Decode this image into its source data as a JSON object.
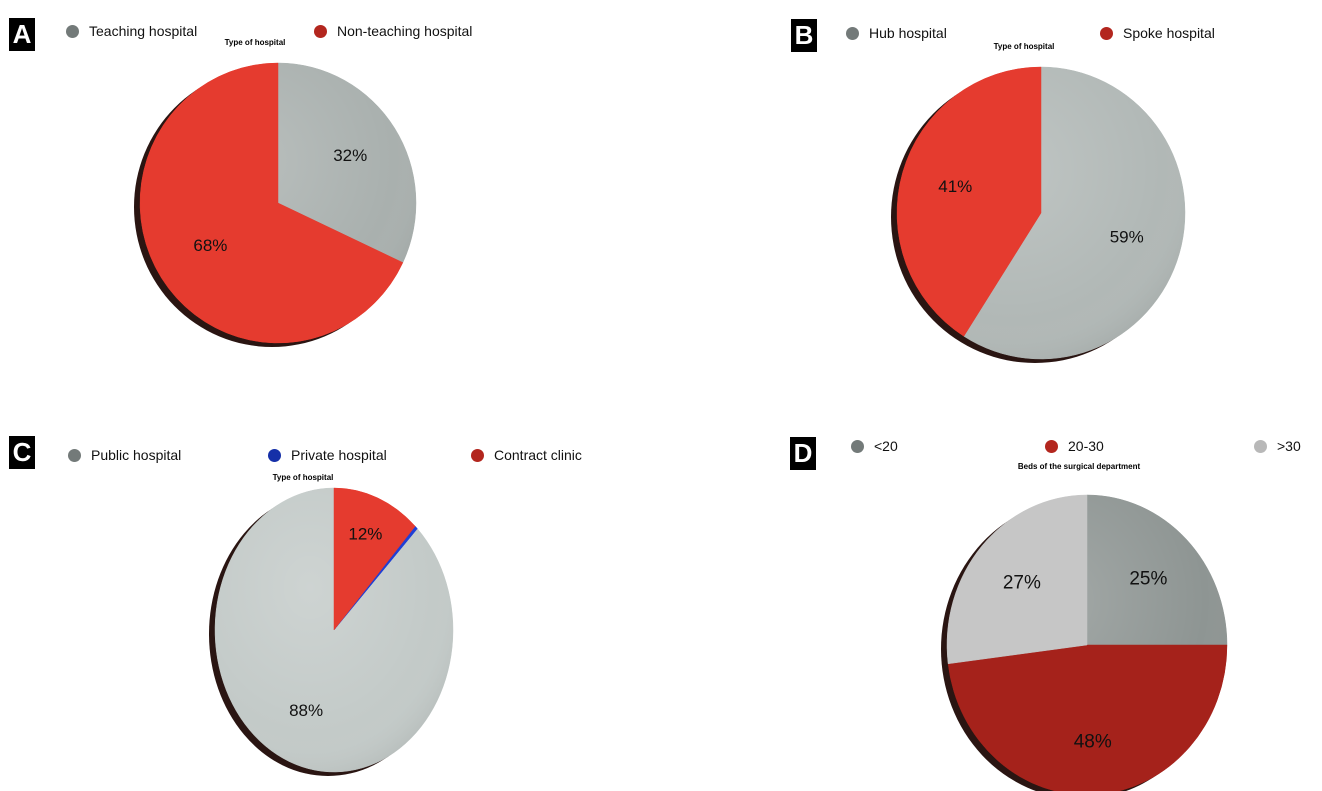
{
  "chart_data": [
    {
      "panel": "A",
      "type": "pie",
      "title": "Type of hospital",
      "legend": [
        {
          "label": "Teaching hospital",
          "color": "#737a79"
        },
        {
          "label": "Non-teaching hospital",
          "color": "#b3261e"
        }
      ],
      "slices": [
        {
          "value": 32,
          "label": "32%",
          "color": "#a9b0ae"
        },
        {
          "value": 68,
          "label": "68%",
          "color": "#e53b2f"
        }
      ]
    },
    {
      "panel": "B",
      "type": "pie",
      "title": "Type of hospital",
      "legend": [
        {
          "label": "Hub hospital",
          "color": "#737a79"
        },
        {
          "label": "Spoke hospital",
          "color": "#b3261e"
        }
      ],
      "slices": [
        {
          "value": 59,
          "label": "59%",
          "color": "#b1b8b6"
        },
        {
          "value": 41,
          "label": "41%",
          "color": "#e53b2f"
        }
      ]
    },
    {
      "panel": "C",
      "type": "pie",
      "title": "Type of hospital",
      "legend": [
        {
          "label": "Public hospital",
          "color": "#737a79"
        },
        {
          "label": "Private hospital",
          "color": "#1530a8"
        },
        {
          "label": "Contract clinic",
          "color": "#b3261e"
        }
      ],
      "slices": [
        {
          "value": 88,
          "label": "88%",
          "color": "#c3cac8"
        },
        {
          "value": 0.4,
          "label": "",
          "color": "#1f3fd6"
        },
        {
          "value": 12,
          "label": "12%",
          "color": "#e53b2f"
        }
      ]
    },
    {
      "panel": "D",
      "type": "pie",
      "title": "Beds of the surgical department",
      "legend": [
        {
          "label": "<20",
          "color": "#737a79"
        },
        {
          "label": "20-30",
          "color": "#b3261e"
        },
        {
          "label": ">30",
          "color": "#b8b8b8"
        }
      ],
      "slices": [
        {
          "value": 25,
          "label": "25%",
          "color": "#8e9593"
        },
        {
          "value": 48,
          "label": "48%",
          "color": "#a5221b"
        },
        {
          "value": 27,
          "label": "27%",
          "color": "#c6c6c6"
        }
      ]
    }
  ]
}
